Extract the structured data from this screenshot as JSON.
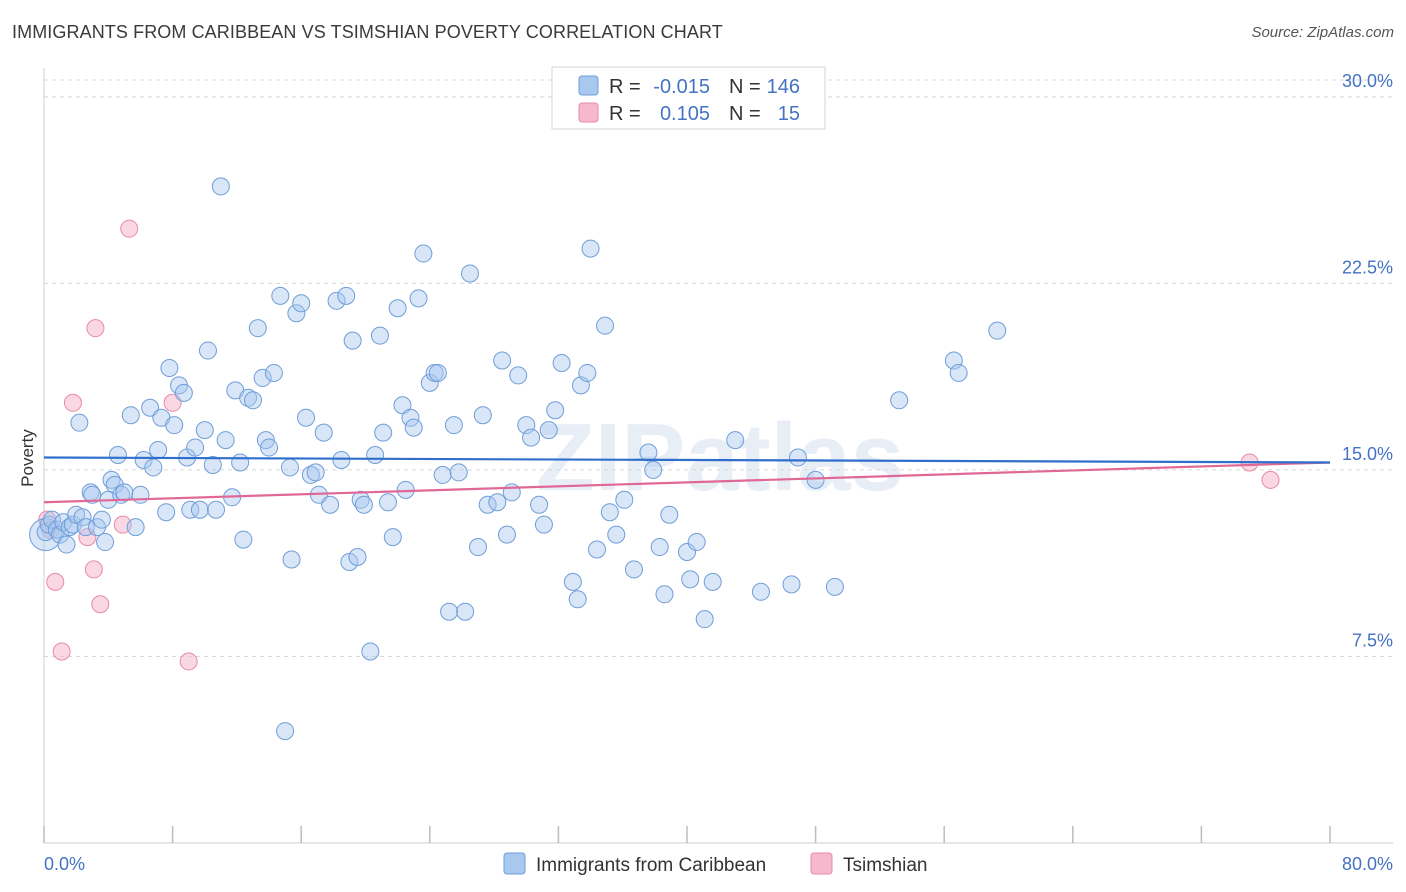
{
  "title": "IMMIGRANTS FROM CARIBBEAN VS TSIMSHIAN POVERTY CORRELATION CHART",
  "source": "Source: ZipAtlas.com",
  "watermark": "ZIPatlas",
  "colors": {
    "blue_fill": "#a9c8f0",
    "blue_stroke": "#6f9ed8",
    "blue_line": "#2f6fcb",
    "pink_fill": "#f5b8cc",
    "pink_stroke": "#e88aa8",
    "pink_line": "#e06896",
    "axis_label": "#4472c4",
    "grid": "#d8d8d8"
  },
  "legend": {
    "rows": [
      {
        "r_label": "R =",
        "r_value": "-0.015",
        "n_label": "N =",
        "n_value": "146"
      },
      {
        "r_label": "R =",
        "r_value": "0.105",
        "n_label": "N =",
        "n_value": "15"
      }
    ]
  },
  "bottom_legend": {
    "items": [
      "Immigrants from Caribbean",
      "Tsimshian"
    ]
  },
  "chart_data": {
    "type": "scatter",
    "title": "IMMIGRANTS FROM CARIBBEAN VS TSIMSHIAN POVERTY CORRELATION CHART",
    "xlabel": "",
    "ylabel": "Poverty",
    "xlim": [
      0,
      80
    ],
    "ylim": [
      0,
      31
    ],
    "x_tick_labels": [
      "0.0%",
      "80.0%"
    ],
    "y_ticks": [
      7.5,
      15.0,
      22.5,
      30.0
    ],
    "y_tick_labels": [
      "7.5%",
      "15.0%",
      "22.5%",
      "30.0%"
    ],
    "grid": "horizontal dashed",
    "legend_position": "top-center",
    "series": [
      {
        "name": "Immigrants from Caribbean",
        "color": "#a9c8f0",
        "trend": {
          "x": [
            0,
            80
          ],
          "y": [
            15.5,
            15.3
          ]
        },
        "points": [
          [
            0.1,
            12.5
          ],
          [
            0.3,
            12.8
          ],
          [
            0.5,
            13.0
          ],
          [
            0.8,
            12.6
          ],
          [
            1.0,
            12.4
          ],
          [
            1.2,
            12.9
          ],
          [
            1.4,
            12.0
          ],
          [
            1.6,
            12.7
          ],
          [
            1.8,
            12.8
          ],
          [
            2.0,
            13.2
          ],
          [
            2.2,
            16.9
          ],
          [
            2.4,
            13.1
          ],
          [
            2.6,
            12.7
          ],
          [
            2.9,
            14.1
          ],
          [
            3.0,
            14.0
          ],
          [
            3.3,
            12.7
          ],
          [
            3.6,
            13.0
          ],
          [
            3.8,
            12.1
          ],
          [
            4.0,
            13.8
          ],
          [
            4.2,
            14.6
          ],
          [
            4.4,
            14.4
          ],
          [
            4.6,
            15.6
          ],
          [
            4.8,
            14.0
          ],
          [
            5.0,
            14.1
          ],
          [
            5.4,
            17.2
          ],
          [
            5.7,
            12.7
          ],
          [
            6.0,
            14.0
          ],
          [
            6.2,
            15.4
          ],
          [
            6.6,
            17.5
          ],
          [
            6.8,
            15.1
          ],
          [
            7.1,
            15.8
          ],
          [
            7.3,
            17.1
          ],
          [
            7.6,
            13.3
          ],
          [
            7.8,
            19.1
          ],
          [
            8.1,
            16.8
          ],
          [
            8.4,
            18.4
          ],
          [
            8.7,
            18.1
          ],
          [
            8.9,
            15.5
          ],
          [
            9.1,
            13.4
          ],
          [
            9.4,
            15.9
          ],
          [
            9.7,
            13.4
          ],
          [
            10.0,
            16.6
          ],
          [
            10.2,
            19.8
          ],
          [
            10.5,
            15.2
          ],
          [
            10.7,
            13.4
          ],
          [
            11.0,
            26.4
          ],
          [
            11.3,
            16.2
          ],
          [
            11.7,
            13.9
          ],
          [
            11.9,
            18.2
          ],
          [
            12.2,
            15.3
          ],
          [
            12.4,
            12.2
          ],
          [
            12.7,
            17.9
          ],
          [
            13.0,
            17.8
          ],
          [
            13.3,
            20.7
          ],
          [
            13.6,
            18.7
          ],
          [
            13.8,
            16.2
          ],
          [
            14.0,
            15.9
          ],
          [
            14.3,
            18.9
          ],
          [
            14.7,
            22.0
          ],
          [
            15.0,
            4.5
          ],
          [
            15.3,
            15.1
          ],
          [
            15.4,
            11.4
          ],
          [
            15.7,
            21.3
          ],
          [
            16.0,
            21.7
          ],
          [
            16.3,
            17.1
          ],
          [
            16.6,
            14.8
          ],
          [
            16.9,
            14.9
          ],
          [
            17.1,
            14.0
          ],
          [
            17.4,
            16.5
          ],
          [
            17.8,
            13.6
          ],
          [
            18.2,
            21.8
          ],
          [
            18.5,
            15.4
          ],
          [
            18.8,
            22.0
          ],
          [
            19.0,
            11.3
          ],
          [
            19.2,
            20.2
          ],
          [
            19.5,
            11.5
          ],
          [
            19.7,
            13.8
          ],
          [
            19.9,
            13.6
          ],
          [
            20.3,
            7.7
          ],
          [
            20.6,
            15.6
          ],
          [
            20.9,
            20.4
          ],
          [
            21.1,
            16.5
          ],
          [
            21.4,
            13.7
          ],
          [
            21.7,
            12.3
          ],
          [
            22.0,
            21.5
          ],
          [
            22.3,
            17.6
          ],
          [
            22.5,
            14.2
          ],
          [
            22.8,
            17.1
          ],
          [
            23.0,
            16.7
          ],
          [
            23.3,
            21.9
          ],
          [
            23.6,
            23.7
          ],
          [
            24.0,
            18.5
          ],
          [
            24.3,
            18.9
          ],
          [
            24.5,
            18.9
          ],
          [
            24.8,
            14.8
          ],
          [
            25.2,
            9.3
          ],
          [
            25.5,
            16.8
          ],
          [
            25.8,
            14.9
          ],
          [
            26.2,
            9.3
          ],
          [
            26.5,
            22.9
          ],
          [
            27.0,
            11.9
          ],
          [
            27.3,
            17.2
          ],
          [
            27.6,
            13.6
          ],
          [
            28.2,
            13.7
          ],
          [
            28.5,
            19.4
          ],
          [
            28.8,
            12.4
          ],
          [
            29.1,
            14.1
          ],
          [
            29.5,
            18.8
          ],
          [
            30.0,
            16.8
          ],
          [
            30.3,
            16.3
          ],
          [
            30.8,
            13.6
          ],
          [
            31.1,
            12.8
          ],
          [
            31.4,
            16.6
          ],
          [
            31.8,
            17.4
          ],
          [
            32.2,
            19.3
          ],
          [
            32.9,
            10.5
          ],
          [
            33.2,
            9.8
          ],
          [
            33.4,
            18.4
          ],
          [
            33.8,
            18.9
          ],
          [
            34.0,
            23.9
          ],
          [
            34.4,
            11.8
          ],
          [
            34.9,
            20.8
          ],
          [
            35.2,
            13.3
          ],
          [
            35.6,
            12.4
          ],
          [
            36.1,
            13.8
          ],
          [
            36.7,
            11.0
          ],
          [
            37.6,
            15.7
          ],
          [
            37.9,
            15.0
          ],
          [
            38.3,
            11.9
          ],
          [
            38.6,
            10.0
          ],
          [
            38.9,
            13.2
          ],
          [
            40.0,
            11.7
          ],
          [
            40.2,
            10.6
          ],
          [
            40.6,
            12.1
          ],
          [
            41.1,
            9.0
          ],
          [
            41.6,
            10.5
          ],
          [
            43.0,
            16.2
          ],
          [
            44.6,
            10.1
          ],
          [
            46.5,
            10.4
          ],
          [
            46.9,
            15.5
          ],
          [
            48.0,
            14.6
          ],
          [
            49.2,
            10.3
          ],
          [
            53.2,
            17.8
          ],
          [
            56.6,
            19.4
          ],
          [
            56.9,
            18.9
          ],
          [
            59.3,
            20.6
          ]
        ]
      },
      {
        "name": "Tsimshian",
        "color": "#f5b8cc",
        "trend": {
          "x": [
            0,
            80
          ],
          "y": [
            13.7,
            15.3
          ]
        },
        "points": [
          [
            0.2,
            13.0
          ],
          [
            0.7,
            10.5
          ],
          [
            1.1,
            7.7
          ],
          [
            1.8,
            17.7
          ],
          [
            2.7,
            12.3
          ],
          [
            3.1,
            11.0
          ],
          [
            3.2,
            20.7
          ],
          [
            3.5,
            9.6
          ],
          [
            4.9,
            12.8
          ],
          [
            5.3,
            24.7
          ],
          [
            8.0,
            17.7
          ],
          [
            9.0,
            7.3
          ],
          [
            75.0,
            15.3
          ],
          [
            76.3,
            14.6
          ],
          [
            0.4,
            12.6
          ]
        ]
      }
    ]
  }
}
